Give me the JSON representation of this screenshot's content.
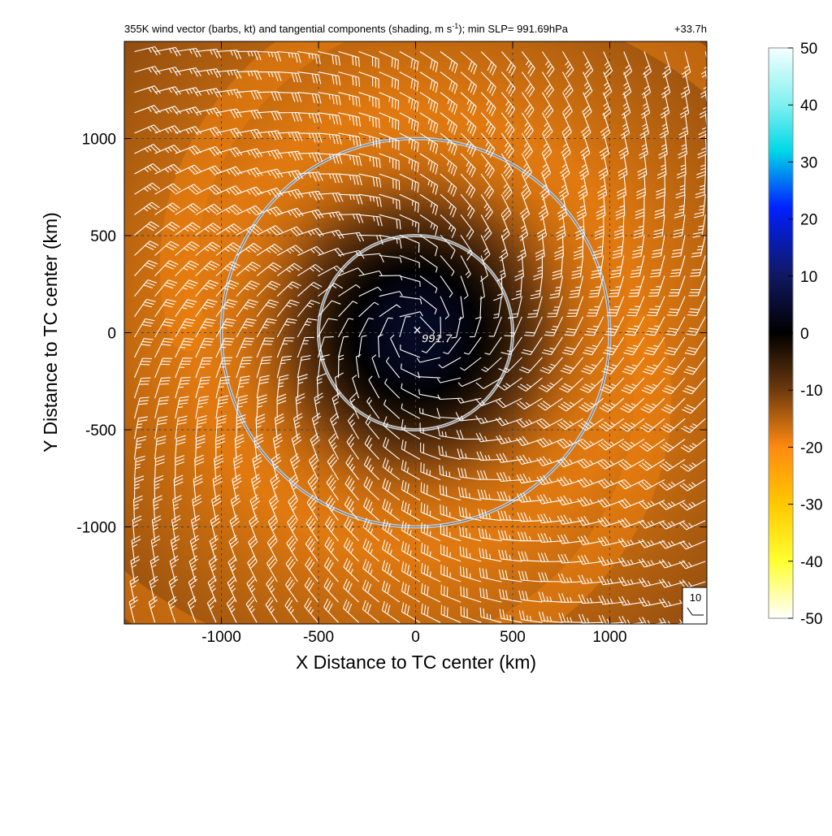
{
  "chart_data": {
    "type": "heatmap",
    "title": {
      "main": "355K wind vector (barbs, kt) and tangential components (shading, m s",
      "superscript": "-1",
      "tail": "); min SLP= 991.69hPa"
    },
    "time_label": "+33.7h",
    "xlabel": "X Distance to TC center (km)",
    "ylabel": "Y Distance to TC center (km)",
    "xlim": [
      -1500,
      1500
    ],
    "ylim": [
      -1500,
      1500
    ],
    "xticks": [
      -1000,
      -500,
      0,
      500,
      1000
    ],
    "yticks": [
      -1000,
      -500,
      0,
      500,
      1000
    ],
    "grid": "dashed",
    "colorbar": {
      "range": [
        -50,
        50
      ],
      "ticks": [
        50,
        40,
        30,
        20,
        10,
        0,
        -10,
        -20,
        -30,
        -40,
        -50
      ],
      "stops": [
        {
          "value": 50,
          "color": "#f4ffff"
        },
        {
          "value": 40,
          "color": "#7ff0f0"
        },
        {
          "value": 32,
          "color": "#00d8e8"
        },
        {
          "value": 22,
          "color": "#0020ff"
        },
        {
          "value": 10,
          "color": "#101860"
        },
        {
          "value": 0,
          "color": "#000000"
        },
        {
          "value": -10,
          "color": "#6e3a0e"
        },
        {
          "value": -20,
          "color": "#ff8a10"
        },
        {
          "value": -30,
          "color": "#ffc800"
        },
        {
          "value": -40,
          "color": "#ffff30"
        },
        {
          "value": -50,
          "color": "#ffffff"
        }
      ]
    },
    "center_marker": {
      "x": 0,
      "y": 0,
      "symbol": "×",
      "label": "991.7"
    },
    "circles_km": [
      500,
      1000
    ],
    "wind_field": {
      "max_tangential_ms": -18,
      "rmw_km": 1150,
      "inner_tangential_ms": 4,
      "barb_spacing_km": 105
    },
    "barb_reference": {
      "label": "10"
    }
  }
}
